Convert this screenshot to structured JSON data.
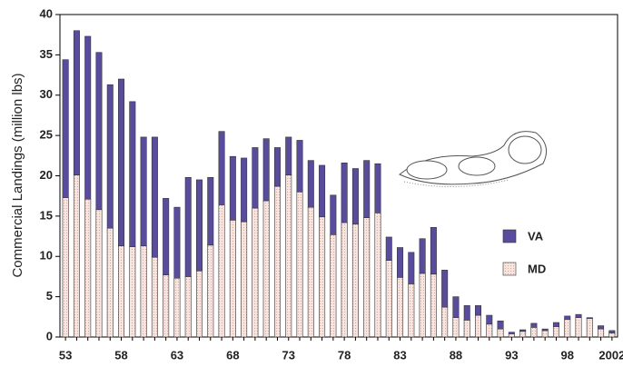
{
  "chart_data": {
    "type": "stacked-bar",
    "y_label": "Commercial Landings (million lbs)",
    "categories": [
      "53",
      null,
      null,
      null,
      null,
      "58",
      null,
      null,
      null,
      null,
      "63",
      null,
      null,
      null,
      null,
      "68",
      null,
      null,
      null,
      null,
      "73",
      null,
      null,
      null,
      null,
      "78",
      null,
      null,
      null,
      null,
      "83",
      null,
      null,
      null,
      null,
      "88",
      null,
      null,
      null,
      null,
      "93",
      null,
      null,
      null,
      null,
      "98",
      null,
      null,
      null,
      "2002"
    ],
    "series": [
      {
        "name": "MD",
        "color": "#f8e4df",
        "values": [
          17.3,
          20.1,
          17.1,
          15.8,
          13.5,
          11.3,
          11.2,
          11.3,
          9.9,
          7.7,
          7.3,
          7.5,
          8.2,
          11.4,
          16.4,
          14.5,
          14.3,
          16.0,
          16.9,
          18.7,
          20.1,
          18.0,
          16.1,
          14.9,
          12.7,
          14.2,
          14.0,
          14.8,
          15.4,
          9.5,
          7.4,
          6.6,
          7.9,
          7.8,
          3.7,
          2.4,
          2.1,
          2.7,
          1.6,
          1.0,
          0.4,
          0.7,
          1.2,
          0.8,
          1.3,
          2.2,
          2.4,
          2.3,
          1.0,
          0.5
        ]
      },
      {
        "name": "VA",
        "color": "#594c9c",
        "values": [
          17.1,
          17.9,
          20.2,
          19.5,
          17.8,
          20.7,
          18.0,
          13.5,
          14.9,
          9.5,
          8.8,
          12.3,
          11.3,
          8.4,
          9.1,
          7.9,
          7.9,
          7.5,
          7.7,
          4.8,
          4.7,
          6.4,
          5.8,
          6.4,
          4.9,
          7.4,
          6.9,
          7.1,
          6.1,
          2.9,
          3.7,
          3.9,
          4.3,
          5.8,
          4.6,
          2.6,
          1.8,
          1.2,
          1.1,
          1.0,
          0.2,
          0.2,
          0.5,
          0.2,
          0.5,
          0.4,
          0.4,
          0.1,
          0.4,
          0.3
        ]
      }
    ],
    "ylim": [
      0,
      40
    ],
    "yticks": [
      0,
      5,
      10,
      15,
      20,
      25,
      30,
      35,
      40
    ],
    "legend": "right"
  }
}
